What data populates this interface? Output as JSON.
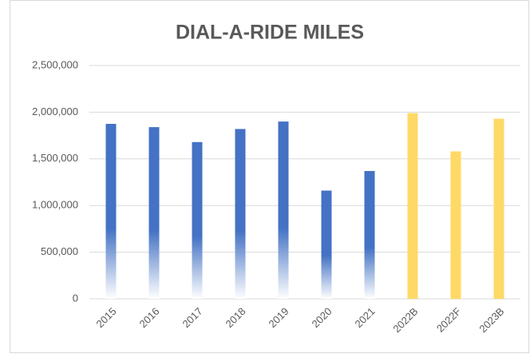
{
  "chart_data": {
    "type": "bar",
    "title": "DIAL-A-RIDE MILES",
    "categories": [
      "2015",
      "2016",
      "2017",
      "2018",
      "2019",
      "2020",
      "2021",
      "2022B",
      "2022F",
      "2023B"
    ],
    "values": [
      1875000,
      1840000,
      1680000,
      1820000,
      1900000,
      1160000,
      1370000,
      1990000,
      1580000,
      1930000
    ],
    "colors": [
      "#4472c4",
      "#4472c4",
      "#4472c4",
      "#4472c4",
      "#4472c4",
      "#4472c4",
      "#4472c4",
      "#ffd966",
      "#ffd966",
      "#ffd966"
    ],
    "ylim": [
      0,
      2500000
    ],
    "yticks": [
      0,
      {
        "value": 500000,
        "label": "500,000"
      },
      {
        "value": 1000000,
        "label": "1,000,000"
      },
      {
        "value": 1500000,
        "label": "1,500,000"
      },
      {
        "value": 2000000,
        "label": "2,000,000"
      },
      {
        "value": 2500000,
        "label": "2,500,000"
      }
    ],
    "grid": true
  }
}
